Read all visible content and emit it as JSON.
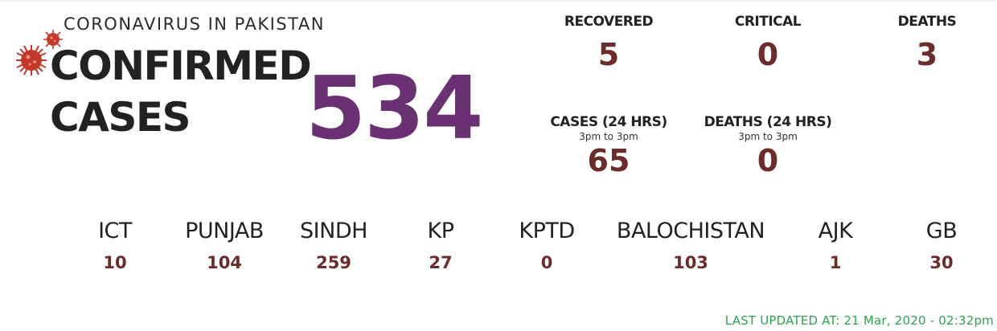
{
  "header": {
    "subtitle": "CORONAVIRUS IN PAKISTAN",
    "title_line1": "CONFIRMED",
    "title_line2": "CASES",
    "confirmed_total": "534"
  },
  "stats": {
    "recovered": {
      "label": "RECOVERED",
      "value": "5"
    },
    "critical": {
      "label": "CRITICAL",
      "value": "0"
    },
    "deaths": {
      "label": "DEATHS",
      "value": "3"
    },
    "cases_24h": {
      "label": "CASES (24 HRS)",
      "sub": "3pm to 3pm",
      "value": "65"
    },
    "deaths_24h": {
      "label": "DEATHS (24 HRS)",
      "sub": "3pm to 3pm",
      "value": "0"
    }
  },
  "provinces": [
    {
      "name": "ICT",
      "value": "10"
    },
    {
      "name": "PUNJAB",
      "value": "104"
    },
    {
      "name": "SINDH",
      "value": "259"
    },
    {
      "name": "KP",
      "value": "27"
    },
    {
      "name": "KPTD",
      "value": "0"
    },
    {
      "name": "BALOCHISTAN",
      "value": "103"
    },
    {
      "name": "AJK",
      "value": "1"
    },
    {
      "name": "GB",
      "value": "30"
    }
  ],
  "footer": {
    "last_updated_label": "LAST UPDATED AT:",
    "last_updated_value": "21 Mar, 2020 - 02:32pm"
  },
  "colors": {
    "big_number": "#6a3172",
    "stat_value": "#6b2c2c",
    "updated_text": "#2da44e",
    "virus": "#c0392b"
  },
  "icons": [
    "virus-icon-large",
    "virus-icon-small"
  ]
}
